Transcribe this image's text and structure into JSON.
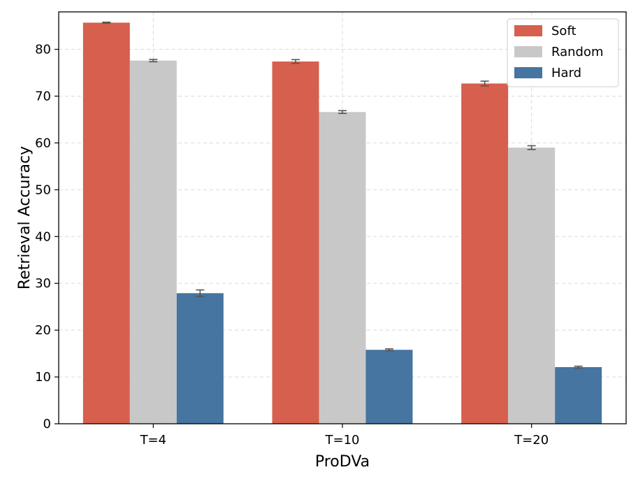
{
  "chart_data": {
    "type": "bar",
    "title": "",
    "xlabel": "ProDVa",
    "ylabel": "Retrieval Accuracy",
    "categories": [
      "T=4",
      "T=10",
      "T=20"
    ],
    "ylim": [
      0,
      88
    ],
    "yticks": [
      0,
      10,
      20,
      30,
      40,
      50,
      60,
      70,
      80
    ],
    "grid": true,
    "legend_position": "top-right",
    "series": [
      {
        "name": "Soft",
        "color": "#d6604d",
        "values": [
          85.7,
          77.4,
          72.7
        ],
        "errors": [
          0.1,
          0.4,
          0.5
        ]
      },
      {
        "name": "Random",
        "color": "#c8c8c8",
        "values": [
          77.6,
          66.6,
          59.0
        ],
        "errors": [
          0.25,
          0.3,
          0.4
        ]
      },
      {
        "name": "Hard",
        "color": "#4575a0",
        "values": [
          27.9,
          15.8,
          12.1
        ],
        "errors": [
          0.7,
          0.2,
          0.2
        ]
      }
    ]
  }
}
